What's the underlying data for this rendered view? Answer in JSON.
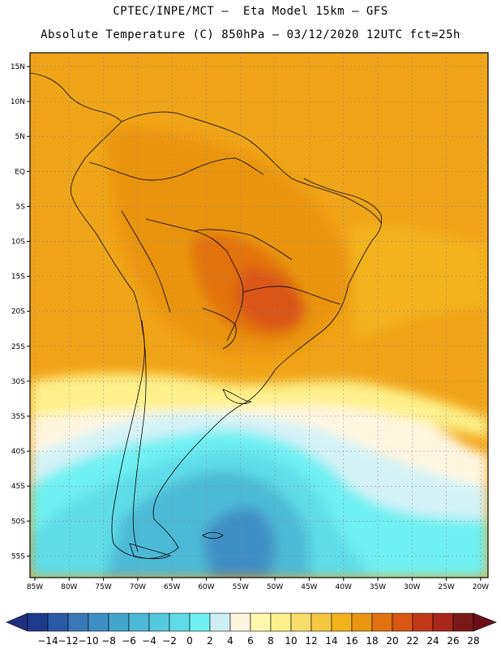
{
  "header": {
    "line1": "CPTEC/INPE/MCT –  Eta Model 15km – GFS",
    "line2": "Absolute Temperature (C) 850hPa – 03/12/2020 12UTC fct=25h"
  },
  "axes": {
    "lat_labels": [
      "15N",
      "10N",
      "5N",
      "EQ",
      "5S",
      "10S",
      "15S",
      "20S",
      "25S",
      "30S",
      "35S",
      "40S",
      "45S",
      "50S",
      "55S"
    ],
    "lon_labels": [
      "85W",
      "80W",
      "75W",
      "70W",
      "65W",
      "60W",
      "55W",
      "50W",
      "45W",
      "40W",
      "35W",
      "30W",
      "25W",
      "20W"
    ]
  },
  "colorbar": {
    "labels": [
      "-14",
      "-12",
      "-10",
      "-8",
      "-6",
      "-4",
      "-2",
      "0",
      "2",
      "4",
      "6",
      "8",
      "10",
      "12",
      "14",
      "16",
      "18",
      "20",
      "22",
      "24",
      "26",
      "28"
    ],
    "colors": [
      "#1d3a8c",
      "#2a5aa6",
      "#3a78b8",
      "#3f8fc4",
      "#44a6cc",
      "#4cbad6",
      "#55c9de",
      "#5fdce8",
      "#6ff0f2",
      "#cdeef4",
      "#fff6e0",
      "#fff9b0",
      "#fef08a",
      "#f9dd6a",
      "#f5c743",
      "#f2b31a",
      "#ea9410",
      "#e27210",
      "#d95712",
      "#c2391a",
      "#a8261a",
      "#7a1a18"
    ],
    "end_colors": [
      "#1f2f80",
      "#6a0f1a"
    ]
  },
  "map": {
    "background_color": "#f0a417"
  }
}
